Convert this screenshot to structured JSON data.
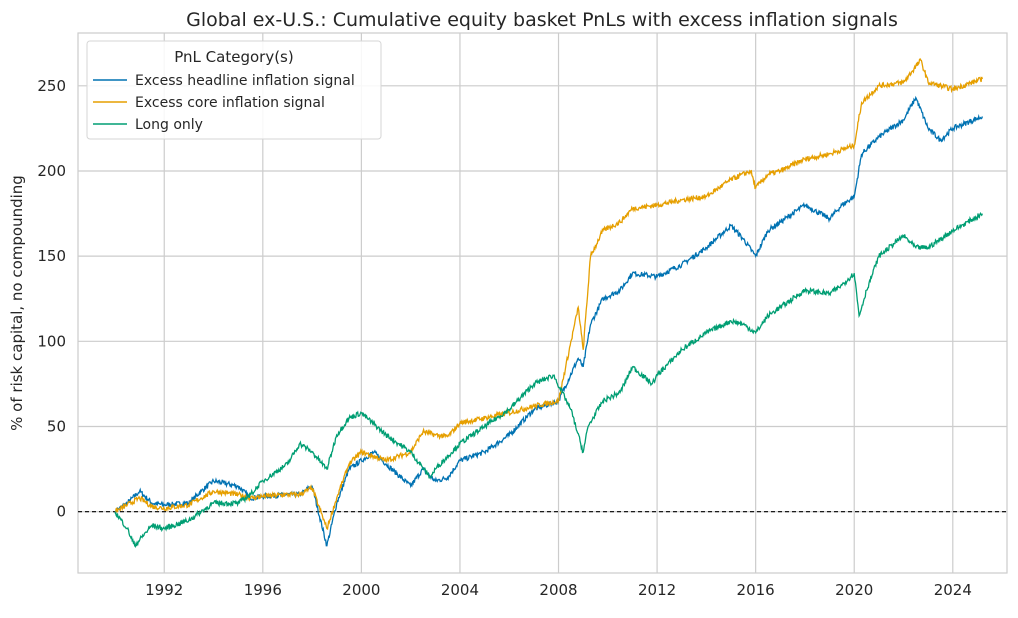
{
  "chart_data": {
    "type": "line",
    "title": "Global ex-U.S.: Cumulative equity basket PnLs with excess inflation signals",
    "xlabel": "",
    "ylabel": "% of risk capital, no compounding",
    "xlim": [
      1988.5,
      2026.2
    ],
    "ylim": [
      -36,
      281
    ],
    "x_ticks": [
      1992,
      1996,
      2000,
      2004,
      2008,
      2012,
      2016,
      2020,
      2024
    ],
    "y_ticks": [
      0,
      50,
      100,
      150,
      200,
      250
    ],
    "grid": true,
    "reference_line": {
      "y": 0,
      "style": "dashed",
      "color": "#000000"
    },
    "legend": {
      "title": "PnL Category(s)",
      "placement": "top-left"
    },
    "series": [
      {
        "name": "Excess headline inflation signal",
        "color": "#0072B2",
        "points": [
          [
            1990,
            0
          ],
          [
            1990.5,
            5
          ],
          [
            1991,
            12
          ],
          [
            1991.5,
            5
          ],
          [
            1992,
            4
          ],
          [
            1993,
            5
          ],
          [
            1993.5,
            12
          ],
          [
            1994,
            18
          ],
          [
            1995,
            15
          ],
          [
            1995.5,
            8
          ],
          [
            1996,
            9
          ],
          [
            1997,
            10
          ],
          [
            1997.5,
            10
          ],
          [
            1998,
            15
          ],
          [
            1998.6,
            -20
          ],
          [
            1999,
            5
          ],
          [
            1999.5,
            25
          ],
          [
            2000,
            30
          ],
          [
            2000.5,
            35
          ],
          [
            2001,
            28
          ],
          [
            2002,
            15
          ],
          [
            2002.5,
            25
          ],
          [
            2003,
            18
          ],
          [
            2003.5,
            20
          ],
          [
            2004,
            30
          ],
          [
            2005,
            35
          ],
          [
            2006,
            45
          ],
          [
            2007,
            60
          ],
          [
            2008,
            65
          ],
          [
            2008.8,
            90
          ],
          [
            2009,
            85
          ],
          [
            2009.3,
            110
          ],
          [
            2009.8,
            125
          ],
          [
            2010.5,
            130
          ],
          [
            2011,
            140
          ],
          [
            2012,
            138
          ],
          [
            2013,
            145
          ],
          [
            2014,
            155
          ],
          [
            2015,
            168
          ],
          [
            2015.5,
            160
          ],
          [
            2016,
            150
          ],
          [
            2016.5,
            165
          ],
          [
            2017,
            170
          ],
          [
            2018,
            180
          ],
          [
            2019,
            172
          ],
          [
            2019.5,
            180
          ],
          [
            2020,
            185
          ],
          [
            2020.3,
            210
          ],
          [
            2021,
            220
          ],
          [
            2022,
            230
          ],
          [
            2022.5,
            243
          ],
          [
            2023,
            225
          ],
          [
            2023.5,
            218
          ],
          [
            2024,
            225
          ],
          [
            2025.2,
            232
          ]
        ]
      },
      {
        "name": "Excess core inflation signal",
        "color": "#E69F00",
        "points": [
          [
            1990,
            0
          ],
          [
            1990.5,
            4
          ],
          [
            1991,
            8
          ],
          [
            1991.5,
            3
          ],
          [
            1992,
            2
          ],
          [
            1993,
            4
          ],
          [
            1993.5,
            8
          ],
          [
            1994,
            12
          ],
          [
            1995,
            10
          ],
          [
            1995.5,
            8
          ],
          [
            1996,
            9
          ],
          [
            1997,
            10
          ],
          [
            1997.5,
            10
          ],
          [
            1998,
            14
          ],
          [
            1998.6,
            -10
          ],
          [
            1999,
            8
          ],
          [
            1999.5,
            28
          ],
          [
            2000,
            35
          ],
          [
            2001,
            30
          ],
          [
            2002,
            35
          ],
          [
            2002.5,
            47
          ],
          [
            2003,
            45
          ],
          [
            2003.5,
            44
          ],
          [
            2004,
            52
          ],
          [
            2005,
            55
          ],
          [
            2006,
            58
          ],
          [
            2007,
            62
          ],
          [
            2008,
            65
          ],
          [
            2008.8,
            120
          ],
          [
            2009,
            95
          ],
          [
            2009.3,
            150
          ],
          [
            2009.8,
            165
          ],
          [
            2010.5,
            170
          ],
          [
            2011,
            178
          ],
          [
            2012,
            180
          ],
          [
            2013,
            183
          ],
          [
            2014,
            185
          ],
          [
            2015,
            195
          ],
          [
            2015.8,
            200
          ],
          [
            2016,
            190
          ],
          [
            2016.5,
            198
          ],
          [
            2017,
            200
          ],
          [
            2018,
            207
          ],
          [
            2019,
            210
          ],
          [
            2020,
            215
          ],
          [
            2020.3,
            240
          ],
          [
            2021,
            250
          ],
          [
            2022,
            252
          ],
          [
            2022.7,
            265
          ],
          [
            2023,
            252
          ],
          [
            2024,
            248
          ],
          [
            2025.2,
            254
          ]
        ]
      },
      {
        "name": "Long only",
        "color": "#009E73",
        "points": [
          [
            1990,
            0
          ],
          [
            1990.5,
            -10
          ],
          [
            1990.8,
            -20
          ],
          [
            1991.5,
            -8
          ],
          [
            1992,
            -10
          ],
          [
            1993,
            -5
          ],
          [
            1993.5,
            0
          ],
          [
            1994,
            5
          ],
          [
            1995,
            5
          ],
          [
            1995.5,
            10
          ],
          [
            1996,
            18
          ],
          [
            1997,
            28
          ],
          [
            1997.5,
            40
          ],
          [
            1998,
            35
          ],
          [
            1998.6,
            25
          ],
          [
            1999,
            45
          ],
          [
            1999.5,
            55
          ],
          [
            2000,
            58
          ],
          [
            2001,
            45
          ],
          [
            2002,
            35
          ],
          [
            2002.8,
            20
          ],
          [
            2003,
            25
          ],
          [
            2004,
            40
          ],
          [
            2005,
            50
          ],
          [
            2006,
            60
          ],
          [
            2007,
            75
          ],
          [
            2007.8,
            80
          ],
          [
            2008.5,
            60
          ],
          [
            2009,
            35
          ],
          [
            2009.2,
            50
          ],
          [
            2009.8,
            65
          ],
          [
            2010.5,
            70
          ],
          [
            2011,
            85
          ],
          [
            2011.8,
            75
          ],
          [
            2012,
            80
          ],
          [
            2013,
            95
          ],
          [
            2014,
            105
          ],
          [
            2015,
            112
          ],
          [
            2015.5,
            110
          ],
          [
            2016,
            105
          ],
          [
            2016.5,
            115
          ],
          [
            2017,
            120
          ],
          [
            2018,
            130
          ],
          [
            2019,
            128
          ],
          [
            2019.5,
            133
          ],
          [
            2020,
            140
          ],
          [
            2020.2,
            115
          ],
          [
            2020.5,
            130
          ],
          [
            2021,
            150
          ],
          [
            2022,
            162
          ],
          [
            2022.5,
            155
          ],
          [
            2023,
            155
          ],
          [
            2024,
            165
          ],
          [
            2025.2,
            175
          ]
        ]
      }
    ]
  }
}
